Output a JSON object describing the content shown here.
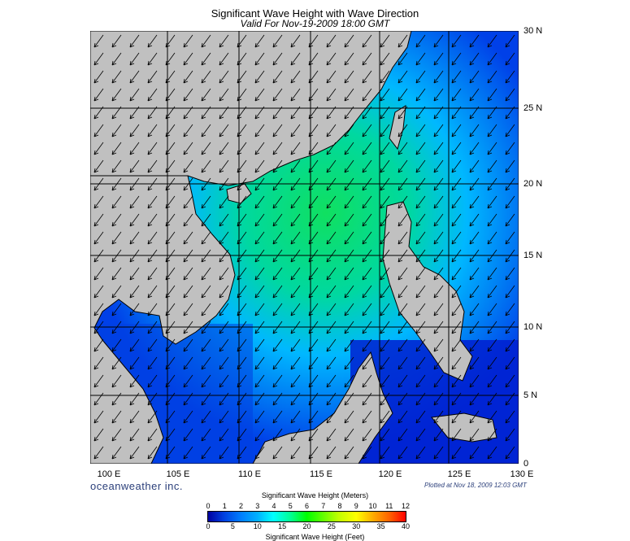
{
  "header": {
    "title": "Significant Wave Height with Wave Direction",
    "subtitle": "Valid For Nov-19-2009 18:00 GMT"
  },
  "map": {
    "lat_labels": [
      "30 N",
      "25 N",
      "20 N",
      "15 N",
      "10 N",
      "5 N",
      "0"
    ],
    "lon_labels": [
      "100 E",
      "105 E",
      "110 E",
      "115 E",
      "120 E",
      "125 E",
      "130 E"
    ],
    "colors": {
      "land": "#c0c0c0",
      "sea_low": "#0018c8",
      "sea_mid": "#00c8ff",
      "sea_high": "#10e060",
      "grid": "#000000"
    }
  },
  "footer": {
    "brand": "oceanweather inc.",
    "plotted": "Plotted at Nov 18, 2009 12:03 GMT"
  },
  "legend": {
    "meters_title": "Significant Wave Height (Meters)",
    "feet_title": "Significant Wave Height (Feet)",
    "meters_ticks": [
      "0",
      "1",
      "2",
      "3",
      "4",
      "5",
      "6",
      "7",
      "8",
      "9",
      "10",
      "11",
      "12"
    ],
    "feet_ticks": [
      "0",
      "5",
      "10",
      "15",
      "20",
      "25",
      "30",
      "35",
      "40"
    ]
  }
}
